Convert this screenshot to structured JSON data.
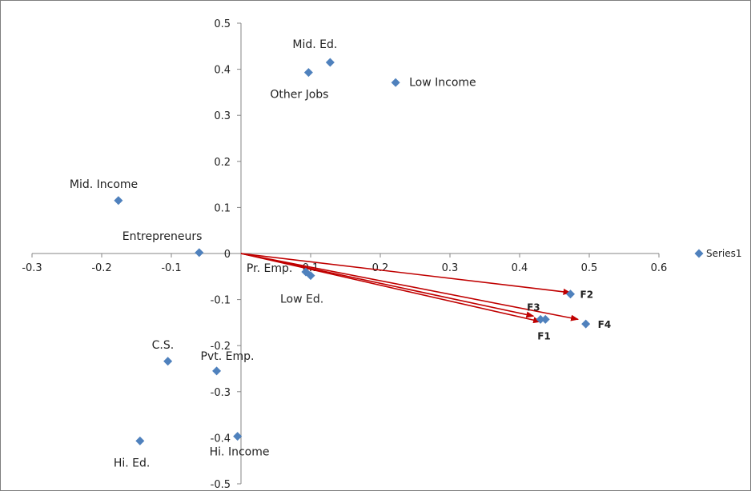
{
  "chart_data": {
    "type": "scatter",
    "title": "",
    "xlabel": "",
    "ylabel": "",
    "xlim": [
      -0.3,
      0.6
    ],
    "ylim": [
      -0.5,
      0.5
    ],
    "x_ticks": [
      "-0.3",
      "-0.2",
      "-0.1",
      "0",
      "0.1",
      "0.2",
      "0.3",
      "0.4",
      "0.5",
      "0.6"
    ],
    "y_ticks": [
      "0.5",
      "0.4",
      "0.3",
      "0.2",
      "0.1",
      "0",
      "-0.1",
      "-0.2",
      "-0.3",
      "-0.4",
      "-0.5"
    ],
    "grid": false,
    "legend": {
      "position": "right",
      "entries": [
        "Series1"
      ]
    },
    "colors": {
      "marker": "#4F81BD",
      "vector": "#C00000",
      "axis": "#868686"
    },
    "series": [
      {
        "name": "Series1",
        "points": [
          {
            "label": "Mid. Ed.",
            "x": 0.128,
            "y": 0.415
          },
          {
            "label": "Other Jobs",
            "x": 0.097,
            "y": 0.393
          },
          {
            "label": "Low Income",
            "x": 0.222,
            "y": 0.371
          },
          {
            "label": "Mid. Income",
            "x": -0.176,
            "y": 0.115
          },
          {
            "label": "Entrepreneurs",
            "x": -0.06,
            "y": 0.002
          },
          {
            "label": "Pr. Emp.",
            "x": 0.093,
            "y": -0.04
          },
          {
            "label": "Low Ed.",
            "x": 0.1,
            "y": -0.048
          },
          {
            "label": "C.S.",
            "x": -0.105,
            "y": -0.234
          },
          {
            "label": "Pvt. Emp.",
            "x": -0.035,
            "y": -0.255
          },
          {
            "label": "Hi. Ed.",
            "x": -0.145,
            "y": -0.407
          },
          {
            "label": "Hi. Income",
            "x": -0.005,
            "y": -0.397
          },
          {
            "label": "F1",
            "x": 0.437,
            "y": -0.143
          },
          {
            "label": "F2",
            "x": 0.473,
            "y": -0.088
          },
          {
            "label": "F3",
            "x": 0.43,
            "y": -0.143
          },
          {
            "label": "F4",
            "x": 0.495,
            "y": -0.153
          }
        ]
      }
    ],
    "vectors": [
      {
        "label": "F1",
        "x": 0.43,
        "y": -0.148
      },
      {
        "label": "F2",
        "x": 0.473,
        "y": -0.085
      },
      {
        "label": "F3",
        "x": 0.42,
        "y": -0.136
      },
      {
        "label": "F4",
        "x": 0.484,
        "y": -0.143
      }
    ]
  }
}
